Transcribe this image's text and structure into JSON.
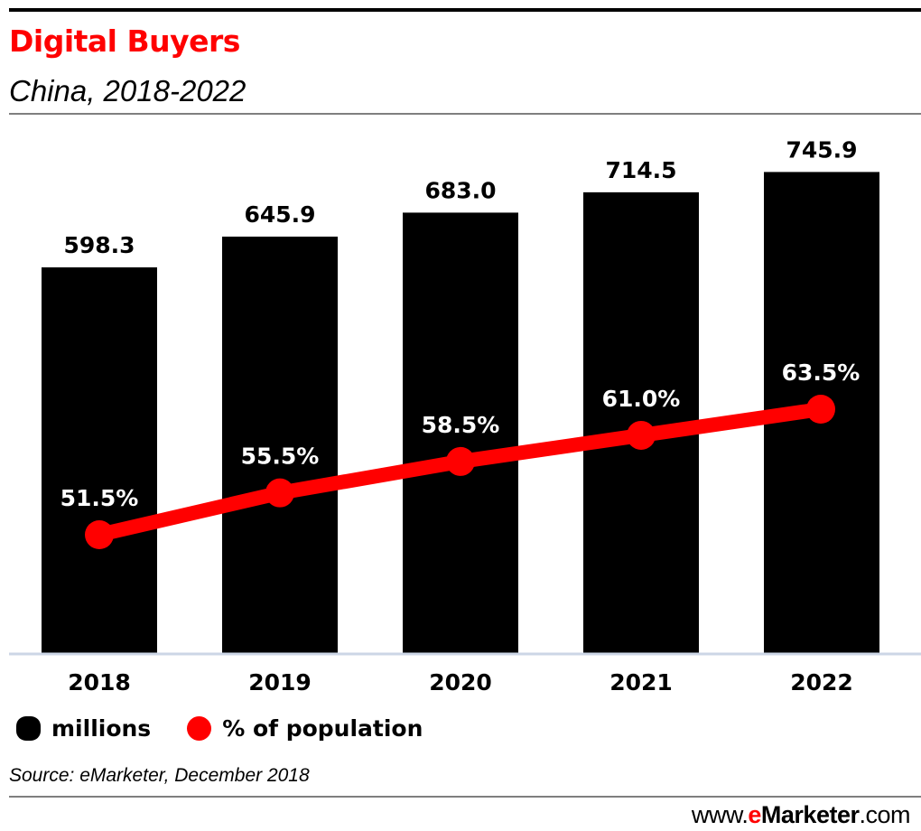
{
  "chart_data": {
    "type": "bar",
    "title": "Digital Buyers",
    "subtitle": "China, 2018-2022",
    "categories": [
      "2018",
      "2019",
      "2020",
      "2021",
      "2022"
    ],
    "series": [
      {
        "name": "millions",
        "type": "bar",
        "color": "#000000",
        "values": [
          598.3,
          645.9,
          683.0,
          714.5,
          745.9
        ],
        "labels": [
          "598.3",
          "645.9",
          "683.0",
          "714.5",
          "745.9"
        ]
      },
      {
        "name": "% of population",
        "type": "line",
        "color": "#ff0000",
        "values": [
          51.5,
          55.5,
          58.5,
          61.0,
          63.5
        ],
        "labels": [
          "51.5%",
          "55.5%",
          "58.5%",
          "61.0%",
          "63.5%"
        ]
      }
    ],
    "xlabel": "",
    "ylabel": "",
    "ylim": [
      0,
      1012
    ],
    "y2lim": [
      0,
      100
    ],
    "grid": false,
    "legend_position": "bottom-left",
    "source": "Source: eMarketer, December 2018"
  },
  "legend": {
    "items": [
      {
        "label": "millions",
        "color": "#000000"
      },
      {
        "label": "% of population",
        "color": "#ff0000"
      }
    ]
  },
  "footer": {
    "source": "Source: eMarketer, December 2018",
    "brand_prefix": "www.",
    "brand_e": "e",
    "brand_name": "Marketer",
    "brand_suffix": ".com"
  },
  "colors": {
    "accent": "#ff0000",
    "bar": "#000000",
    "baseline": "#ccd6e6",
    "rule": "#7f7f7f"
  }
}
